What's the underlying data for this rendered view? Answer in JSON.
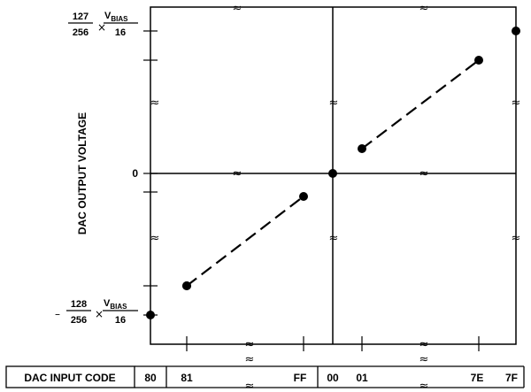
{
  "chart_data": {
    "type": "line",
    "ylabel": "DAC OUTPUT VOLTAGE",
    "table_label": "DAC INPUT CODE",
    "x_codes": [
      "80",
      "81",
      "FF",
      "00",
      "01",
      "7E",
      "7F"
    ],
    "y_labels": {
      "top": {
        "num": "127",
        "den": "256",
        "times": "×",
        "vnum": "V",
        "vsub": "BIAS",
        "vden": "16"
      },
      "zero": "0",
      "bottom": {
        "sign": "–",
        "num": "128",
        "den": "256",
        "times": "×",
        "vnum": "V",
        "vsub": "BIAS",
        "vden": "16"
      }
    },
    "y_range_codes": [
      -128,
      127
    ],
    "x_range_codes": [
      -128,
      127
    ],
    "series": [
      {
        "points": [
          {
            "code": -128,
            "value": -128
          },
          {
            "code": -127,
            "value": -127
          }
        ],
        "style": "dot"
      },
      {
        "points": [
          {
            "code": -127,
            "value": -127
          },
          {
            "code": -1,
            "value": -1
          }
        ],
        "style": "dashed"
      },
      {
        "points": [
          {
            "code": 0,
            "value": 0
          }
        ],
        "style": "dot"
      },
      {
        "points": [
          {
            "code": 1,
            "value": 1
          },
          {
            "code": 126,
            "value": 126
          }
        ],
        "style": "dashed"
      },
      {
        "points": [
          {
            "code": 127,
            "value": 127
          }
        ],
        "style": "dot"
      }
    ],
    "axis_breaks": "≈",
    "grid": false,
    "legend": "none"
  }
}
